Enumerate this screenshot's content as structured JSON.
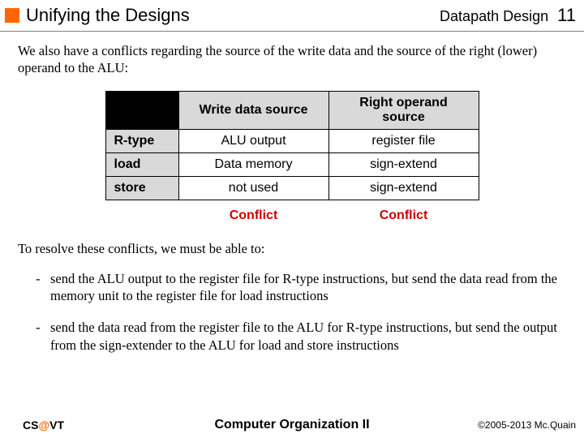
{
  "header": {
    "title": "Unifying the Designs",
    "section": "Datapath Design",
    "page_number": "11"
  },
  "intro": "We also have a conflicts regarding the source of the write data and the source of the right (lower) operand to the ALU:",
  "table": {
    "columns": [
      "Write data source",
      "Right operand source"
    ],
    "rows": [
      {
        "label": "R-type",
        "cells": [
          "ALU output",
          "register file"
        ]
      },
      {
        "label": "load",
        "cells": [
          "Data memory",
          "sign-extend"
        ]
      },
      {
        "label": "store",
        "cells": [
          "not used",
          "sign-extend"
        ]
      }
    ],
    "conflict_label": "Conflict",
    "header_bg": "#d9d9d9",
    "corner_bg": "#000000",
    "conflict_color": "#cc0000",
    "border_color": "#000000"
  },
  "resolve_intro": "To resolve these conflicts, we must be able to:",
  "bullets": [
    "send the ALU output to the register file for R-type instructions, but send the data read from the memory unit to the register file for load instructions",
    "send the data read from the register file to the ALU for R-type instructions, but send the output from the sign-extender to the ALU for load and store instructions"
  ],
  "footer": {
    "left_prefix": "CS",
    "left_at": "@",
    "left_suffix": "VT",
    "center": "Computer Organization II",
    "right": "©2005-2013 Mc.Quain"
  },
  "colors": {
    "accent": "#ff6600",
    "divider": "#808080"
  }
}
